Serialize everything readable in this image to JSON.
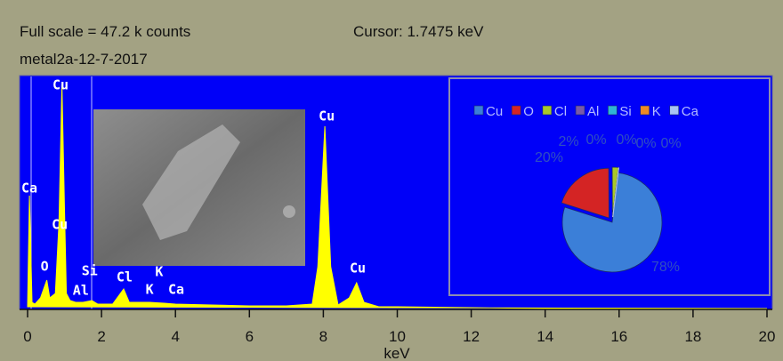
{
  "header": {
    "full_scale": "Full scale = 47.2 k counts",
    "cursor": "Cursor: 1.7475 keV",
    "file": "metal2a-12-7-2017"
  },
  "chart_data": [
    {
      "type": "area",
      "x_label": "keV",
      "x": [
        0,
        0.05,
        0.12,
        0.2,
        0.35,
        0.52,
        0.6,
        0.75,
        0.85,
        0.93,
        1.0,
        1.05,
        1.15,
        1.3,
        1.5,
        1.74,
        1.9,
        2.3,
        2.6,
        2.75,
        3.3,
        3.7,
        4.0,
        5,
        6,
        7,
        7.7,
        7.85,
        8.04,
        8.2,
        8.4,
        8.7,
        8.9,
        9.1,
        9.5,
        10,
        12,
        14,
        20
      ],
      "values": [
        540,
        22980,
        1440,
        1080,
        2330,
        5920,
        2330,
        3230,
        17590,
        45410,
        19390,
        3230,
        1800,
        1440,
        1440,
        1800,
        1080,
        1080,
        4130,
        1440,
        1440,
        1260,
        1080,
        900,
        720,
        720,
        1080,
        8620,
        36980,
        8620,
        900,
        2330,
        5390,
        1440,
        540,
        540,
        360,
        180,
        180
      ],
      "color": "#ffff00",
      "xlim": [
        0,
        20
      ],
      "ylim": [
        0,
        47200
      ],
      "xticks": [
        0,
        2,
        4,
        6,
        8,
        10,
        12,
        14,
        16,
        18,
        20
      ],
      "annotations": [
        {
          "label": "Ca",
          "x": 0.05,
          "y": 24410
        },
        {
          "label": "Cu",
          "x": 0.89,
          "y": 45230
        },
        {
          "label": "Cu",
          "x": 0.87,
          "y": 17050
        },
        {
          "label": "O",
          "x": 0.46,
          "y": 8620
        },
        {
          "label": "Si",
          "x": 1.68,
          "y": 7720
        },
        {
          "label": "Al",
          "x": 1.44,
          "y": 3770
        },
        {
          "label": "Cl",
          "x": 2.62,
          "y": 6460
        },
        {
          "label": "K",
          "x": 3.56,
          "y": 7540
        },
        {
          "label": "K",
          "x": 3.3,
          "y": 3950
        },
        {
          "label": "Ca",
          "x": 4.02,
          "y": 3950
        },
        {
          "label": "Cu",
          "x": 8.09,
          "y": 38950
        },
        {
          "label": "Cu",
          "x": 8.93,
          "y": 8260
        }
      ]
    },
    {
      "type": "pie",
      "categories": [
        "Cu",
        "O",
        "Cl",
        "Al",
        "Si",
        "K",
        "Ca"
      ],
      "values": [
        78,
        20,
        2,
        0,
        0,
        0,
        0
      ],
      "value_labels": [
        "78%",
        "20%",
        "2%",
        "0%",
        "0%",
        "0%",
        "0%"
      ],
      "colors": [
        "#3b7fd8",
        "#d42424",
        "#a8c828",
        "#7a5aa8",
        "#2fb4d4",
        "#f08a24",
        "#a8c4f4"
      ]
    }
  ]
}
